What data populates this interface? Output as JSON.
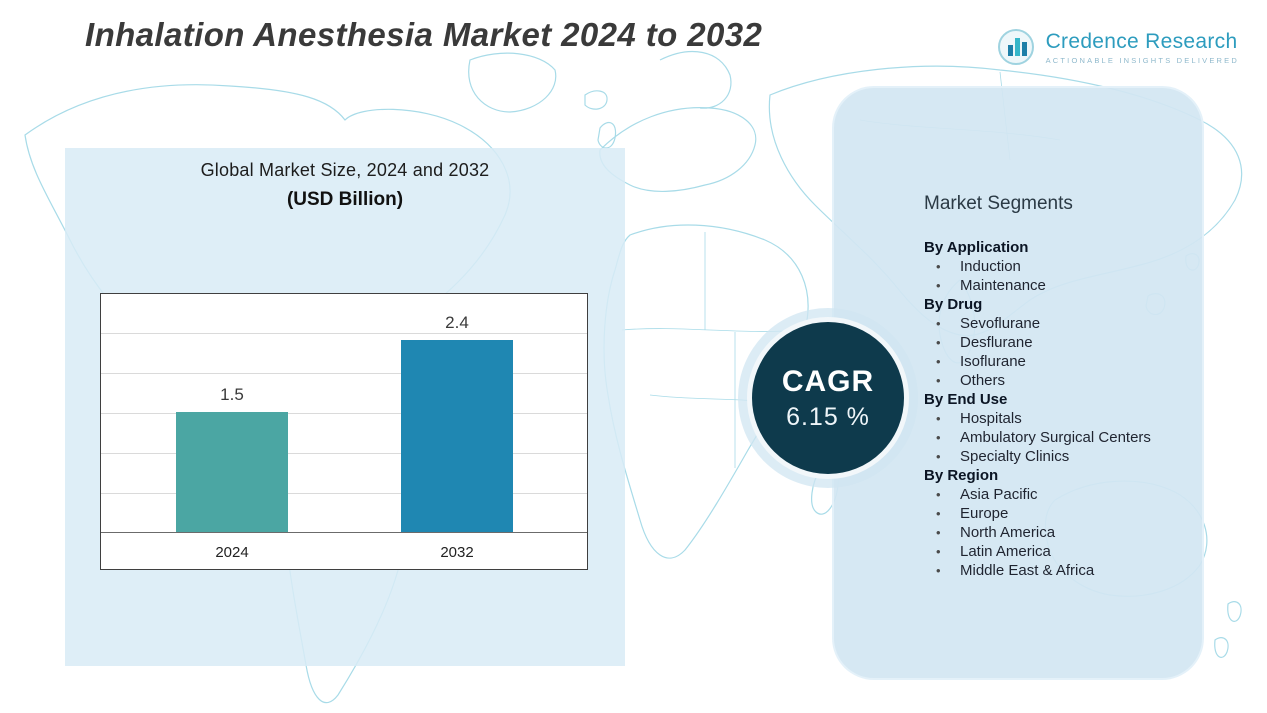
{
  "header": {
    "title": "Inhalation Anesthesia Market 2024 to 2032",
    "logo": {
      "name": "Credence Research",
      "tagline": "Actionable Insights Delivered",
      "icon": "bar-chart-circle-icon",
      "brand_color": "#2d9cbe"
    }
  },
  "chart_panel": {
    "title_line1": "Global Market Size, 2024 and 2032",
    "title_line2": "(USD Billion)"
  },
  "chart_data": {
    "type": "bar",
    "categories": [
      "2024",
      "2032"
    ],
    "values": [
      1.5,
      2.4
    ],
    "data_labels": [
      "1.5",
      "2.4"
    ],
    "title": "Global Market Size, 2024 and 2032 (USD Billion)",
    "xlabel": "",
    "ylabel": "",
    "ylim": [
      0,
      3
    ],
    "grid": true,
    "legend": "none",
    "bar_colors": [
      "#4ba6a3",
      "#1f87b2"
    ]
  },
  "cagr": {
    "label": "CAGR",
    "value": "6.15 %",
    "circle_color": "#0e3a4c"
  },
  "segments": {
    "title": "Market Segments",
    "groups": [
      {
        "heading": "By Application",
        "items": [
          "Induction",
          "Maintenance"
        ]
      },
      {
        "heading": "By Drug",
        "items": [
          "Sevoflurane",
          "Desflurane",
          "Isoflurane",
          "Others"
        ]
      },
      {
        "heading": "By End Use",
        "items": [
          "Hospitals",
          "Ambulatory Surgical Centers",
          "Specialty Clinics"
        ]
      },
      {
        "heading": "By Region",
        "items": [
          "Asia Pacific",
          "Europe",
          "North America",
          "Latin America",
          "Middle East & Africa"
        ]
      }
    ]
  },
  "colors": {
    "map_line": "#a8dbe8",
    "panel_blue": "#d8ebf6",
    "title_text": "#3a3a3a"
  }
}
